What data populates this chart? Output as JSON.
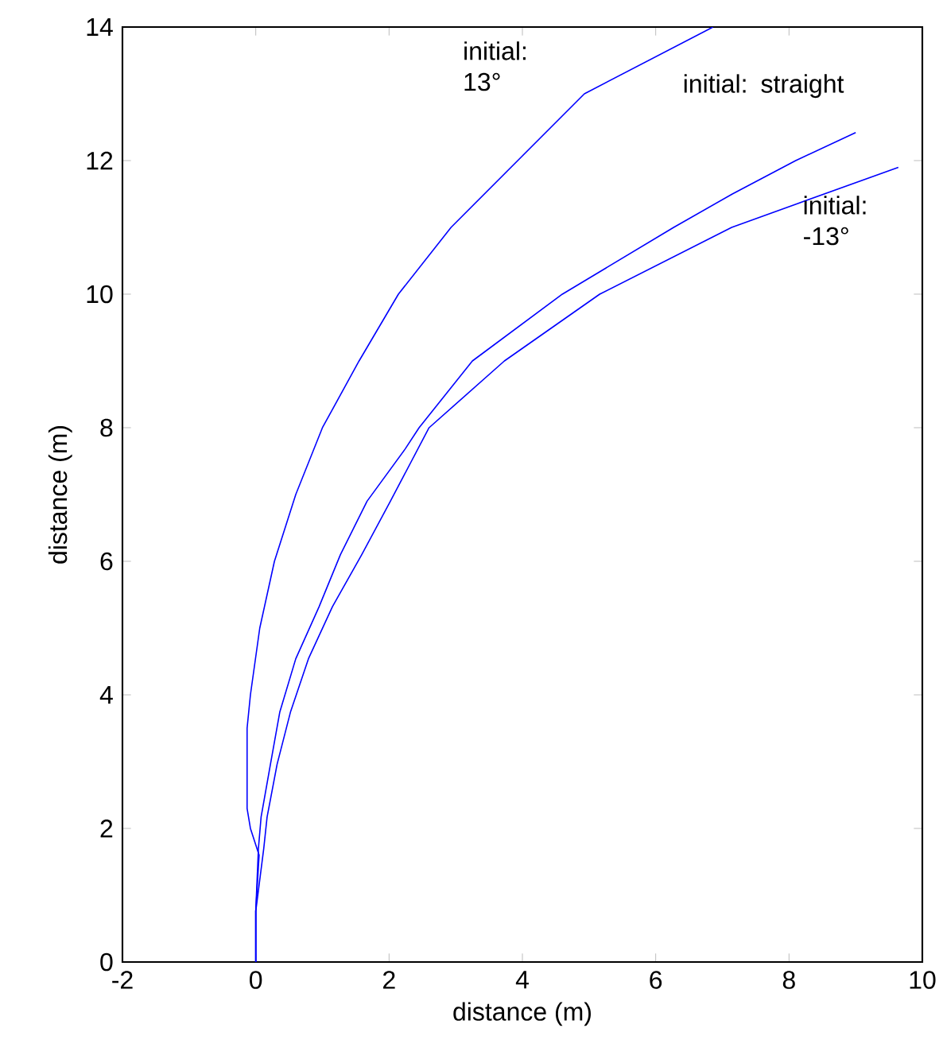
{
  "chart_data": {
    "type": "line",
    "xlabel": "distance (m)",
    "ylabel": "distance (m)",
    "xlim": [
      -2,
      10
    ],
    "ylim": [
      0,
      14
    ],
    "xticks": [
      -2,
      0,
      2,
      4,
      6,
      8,
      10
    ],
    "yticks": [
      0,
      2,
      4,
      6,
      8,
      10,
      12,
      14
    ],
    "grid": false,
    "marker": "none",
    "line_style": "solid",
    "series": [
      {
        "color": "#0000ff",
        "x": [
          0,
          0,
          0.05,
          -0.08,
          -0.13,
          -0.13,
          -0.08,
          0.06,
          0.28,
          0.6,
          1.0,
          1.55,
          2.14,
          2.93,
          3.93,
          4.93,
          6.86
        ],
        "values": [
          0,
          0.76,
          1.6,
          2.0,
          2.3,
          3.5,
          4.0,
          5.0,
          6.0,
          7.0,
          8.0,
          9.0,
          10.0,
          11.0,
          12.0,
          13.0,
          14.0
        ]
      },
      {
        "color": "#0000ff",
        "x": [
          0,
          0,
          0.04,
          0.08,
          0.22,
          0.36,
          0.6,
          0.95,
          1.27,
          1.67,
          2.24,
          2.45,
          3.25,
          4.6,
          6.27,
          7.15,
          8.1,
          9.0
        ],
        "values": [
          0,
          0.76,
          1.7,
          2.17,
          2.96,
          3.74,
          4.54,
          5.32,
          6.1,
          6.9,
          7.68,
          8.0,
          9.0,
          10.0,
          11.0,
          11.5,
          12.0,
          12.42
        ]
      },
      {
        "color": "#0000ff",
        "x": [
          0,
          0,
          0.12,
          0.17,
          0.32,
          0.52,
          0.79,
          1.15,
          1.59,
          2.02,
          2.6,
          3.73,
          5.16,
          7.14,
          9.64
        ],
        "values": [
          0,
          0.76,
          1.7,
          2.17,
          2.96,
          3.74,
          4.54,
          5.32,
          6.1,
          6.9,
          8.0,
          9.0,
          10.0,
          11.0,
          11.9
        ]
      }
    ],
    "annotations": [
      "initial: 13°",
      "initial: straight",
      "initial: -13°"
    ]
  }
}
